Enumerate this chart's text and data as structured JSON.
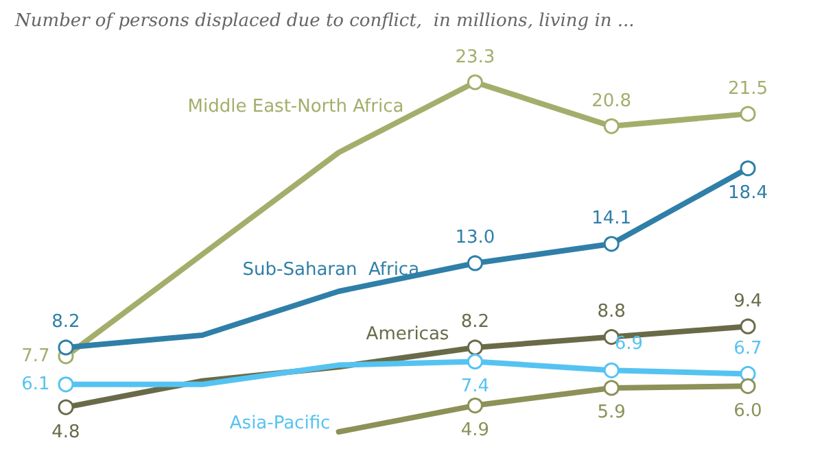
{
  "chart_data": {
    "type": "line",
    "title": "Number of persons displaced due to conflict,  in millions, living in ...",
    "categories": [
      null,
      null,
      null,
      null,
      null,
      null
    ],
    "tick_labels": false,
    "grid": false,
    "legend": false,
    "marker": "circle",
    "line_style": "solid",
    "series": [
      {
        "name": "Middle East-North Africa",
        "color": "#a5ad6b",
        "values": [
          7.7,
          13.5,
          19.3,
          23.3,
          20.8,
          21.5
        ],
        "value_labels": [
          "7.7",
          null,
          null,
          "23.3",
          "20.8",
          "21.5"
        ]
      },
      {
        "name": "Sub-Saharan  Africa",
        "color": "#2f7fa8",
        "values": [
          8.2,
          8.9,
          11.4,
          13.0,
          14.1,
          18.4
        ],
        "value_labels": [
          "8.2",
          null,
          null,
          "13.0",
          "14.1",
          "18.4"
        ]
      },
      {
        "name": "Americas",
        "color": "#696b48",
        "values": [
          4.8,
          6.3,
          7.1,
          8.2,
          8.8,
          9.4
        ],
        "value_labels": [
          "4.8",
          null,
          null,
          "8.2",
          "8.8",
          "9.4"
        ]
      },
      {
        "name": "Asia-Pacific",
        "color": "#55c3f1",
        "values": [
          6.1,
          6.1,
          7.2,
          7.4,
          6.9,
          6.7
        ],
        "value_labels": [
          "6.1",
          null,
          null,
          "7.4",
          "6.9",
          "6.7"
        ]
      },
      {
        "color": "#8c9157",
        "values": [
          null,
          null,
          3.4,
          4.9,
          5.9,
          6.0
        ],
        "value_labels": [
          null,
          null,
          null,
          "4.9",
          "5.9",
          "6.0"
        ]
      }
    ]
  }
}
